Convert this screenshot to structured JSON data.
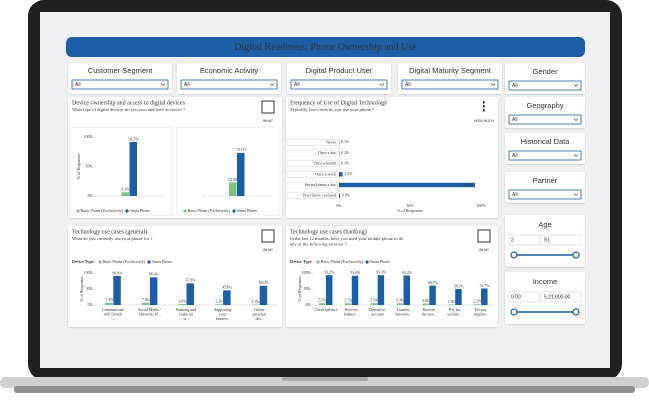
{
  "header": {
    "title": "Digital Readiness: Phone Ownership and Use"
  },
  "filters": [
    {
      "label": "Customer Segment",
      "value": "All"
    },
    {
      "label": "Economic Activity",
      "value": "All"
    },
    {
      "label": "Digital Product User",
      "value": "All"
    },
    {
      "label": "Digital Maturity Segment",
      "value": "All"
    }
  ],
  "side_filters": [
    {
      "label": "Gender",
      "value": "All"
    },
    {
      "label": "Geography",
      "value": "All"
    },
    {
      "label": "Historical Data",
      "value": "All"
    },
    {
      "label": "Partner",
      "value": "All"
    }
  ],
  "ranges": [
    {
      "label": "Age",
      "min": "2",
      "max": "91"
    },
    {
      "label": "Income",
      "min": "0.00",
      "max": "5,21,000.00"
    }
  ],
  "panels": [
    {
      "title": "Device ownership and access to digital devices",
      "subtitle": "What type of digital devices do you own and have access to ?",
      "button": "WHAT",
      "chart": {
        "type": "bar",
        "ylabel": "% of Responses",
        "ylim": [
          0,
          100
        ],
        "yticks": [
          {
            "value": 0,
            "label": "0%"
          },
          {
            "value": 50,
            "label": "50%"
          },
          {
            "value": 100,
            "label": "100%"
          }
        ],
        "series": [
          {
            "name": "Basic Phone (Exclusively)",
            "color": "#7cc47f",
            "values": [
              6.3,
              23.0
            ],
            "value_labels": [
              "6.3%",
              "23.0%"
            ]
          },
          {
            "name": "Smart Phone",
            "color": "#1c5fa6",
            "values": [
              91.7,
              73.1
            ],
            "value_labels": [
              "91.7%",
              "73.1%"
            ]
          }
        ]
      }
    },
    {
      "title": "Frequency of Use of Digital Technology",
      "subtitle": "Typically, how often do you use your phone ?",
      "button": "HOW MUCH",
      "chart": {
        "type": "hbar",
        "xlabel": "% of Responses",
        "color": "#1c5fa6",
        "categories": [
          "Never",
          "Once a day",
          "Once a month",
          "Once a week",
          "Several times a day",
          "Don't know / refused"
        ],
        "values": [
          0.1,
          0.2,
          0.1,
          2.5,
          95.8,
          0.8
        ],
        "value_labels": [
          "0.1%",
          "0.2%",
          "0.1%",
          "2.5%",
          "95.8%",
          "0.8%"
        ],
        "xlim": [
          0,
          100
        ],
        "xticks": [
          {
            "value": 0,
            "label": "0%"
          },
          {
            "value": 50,
            "label": "50%"
          },
          {
            "value": 100,
            "label": "100%"
          }
        ]
      }
    },
    {
      "title": "Technology use cases (general)",
      "subtitle": "What do you currently use your phone for ?",
      "button": "WHAT",
      "chart": {
        "type": "bar",
        "legend_title": "Device Type",
        "ylabel": "% of Responses",
        "ylim": [
          0,
          100
        ],
        "yticks": [
          {
            "value": 0,
            "label": "0%"
          },
          {
            "value": 50,
            "label": "50%"
          },
          {
            "value": 100,
            "label": "100%"
          }
        ],
        "categories": [
          "Communicate with friends ...",
          "Social Media / Networks (F...",
          "Banking and financial se...",
          "Supporting your busines...",
          "Online personal dev..."
        ],
        "series": [
          {
            "name": "Basic Phone (Exclusively)",
            "color": "#7cc47f",
            "values": [
              7.4,
              7.0,
              3.0,
              2.3,
              1.7
            ],
            "value_labels": [
              "7.4%",
              "7.0%",
              "3.0%",
              "2.3%",
              "1.7%"
            ]
          },
          {
            "name": "Smart Phone",
            "color": "#1c5fa6",
            "values": [
              90.9,
              86.4,
              67.8,
              45.8,
              60.0
            ],
            "value_labels": [
              "90.9%",
              "86.4%",
              "67.8%",
              "45.8%",
              "60.0%"
            ]
          }
        ]
      }
    },
    {
      "title": "Technology use cases (banking)",
      "subtitle": "In the last 12 months, have you used your mobile phone to do any of the following services ?",
      "button": "WHAT",
      "chart": {
        "type": "bar",
        "legend_title": "Device Type",
        "ylabel": "% of Responses",
        "ylim": [
          0,
          100
        ],
        "yticks": [
          {
            "value": 0,
            "label": "0%"
          },
          {
            "value": 50,
            "label": "50%"
          },
          {
            "value": 100,
            "label": "100%"
          }
        ],
        "categories": [
          "Check balance",
          "Receive balance ...",
          "Deposit to account",
          "Transfer between...",
          "Receive electron...",
          "Pay for utilities ...",
          "Pre-pay supplier..."
        ],
        "series": [
          {
            "name": "Basic Phone (Exclusively)",
            "color": "#7cc47f",
            "values": [
              5.5,
              5.5,
              5.5,
              5.3,
              4.6,
              1.8,
              2.2
            ],
            "value_labels": [
              "5.5%",
              "5.5%",
              "5.5%",
              "5.3%",
              "4.6%",
              "1.8%",
              "2.2%"
            ]
          },
          {
            "name": "Smart Phone",
            "color": "#1c5fa6",
            "values": [
              93.2,
              91.4,
              93.3,
              92.2,
              60.7,
              50.3,
              51.7
            ],
            "value_labels": [
              "93.2%",
              "91.4%",
              "93.3%",
              "92.2%",
              "60.7%",
              "50.3%",
              "51.7%"
            ]
          }
        ]
      }
    }
  ]
}
